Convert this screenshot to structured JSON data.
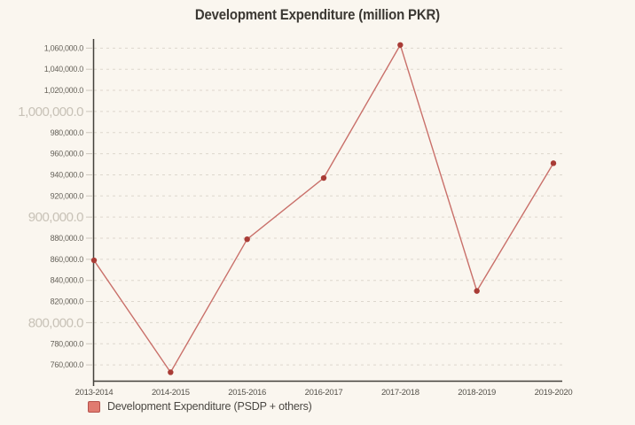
{
  "chart_data": {
    "type": "line",
    "title": "Development Expenditure (million PKR)",
    "categories": [
      "2013-2014",
      "2014-2015",
      "2015-2016",
      "2016-2017",
      "2017-2018",
      "2018-2019",
      "2019-2020"
    ],
    "series": [
      {
        "name": "Development Expenditure (PSDP + others)",
        "values": [
          859000,
          753000,
          879000,
          937000,
          1063000,
          830000,
          951000
        ]
      }
    ],
    "xlabel": "",
    "ylabel": "",
    "ylim": [
      745000,
      1067000
    ],
    "grid": "horizontal-dashed",
    "legend_position": "bottom-left",
    "y_ticks": [
      {
        "value": 760000,
        "label": "760,000.0",
        "major": false
      },
      {
        "value": 780000,
        "label": "780,000.0",
        "major": false
      },
      {
        "value": 800000,
        "label": "800,000.0",
        "major": true
      },
      {
        "value": 820000,
        "label": "820,000.0",
        "major": false
      },
      {
        "value": 840000,
        "label": "840,000.0",
        "major": false
      },
      {
        "value": 860000,
        "label": "860,000.0",
        "major": false
      },
      {
        "value": 880000,
        "label": "880,000.0",
        "major": false
      },
      {
        "value": 900000,
        "label": "900,000.0",
        "major": true
      },
      {
        "value": 920000,
        "label": "920,000.0",
        "major": false
      },
      {
        "value": 940000,
        "label": "940,000.0",
        "major": false
      },
      {
        "value": 960000,
        "label": "960,000.0",
        "major": false
      },
      {
        "value": 980000,
        "label": "980,000.0",
        "major": false
      },
      {
        "value": 1000000,
        "label": "1,000,000.0",
        "major": true
      },
      {
        "value": 1020000,
        "label": "1,020,000.0",
        "major": false
      },
      {
        "value": 1040000,
        "label": "1,040,000.0",
        "major": false
      },
      {
        "value": 1060000,
        "label": "1,060,000.0",
        "major": false
      }
    ],
    "colors": {
      "background": "#faf6ef",
      "title": "#3b3833",
      "line": "#c9706a",
      "point": "#a93c36",
      "grid": "#ddd7cd",
      "tick_mark": "#ccc6bc",
      "axis": "#44413b",
      "tick_label_minor": "#67635b",
      "tick_label_major": "#c8c2b7",
      "x_label": "#55524b",
      "legend_swatch_fill": "#e07b70",
      "legend_swatch_border": "#b5514b",
      "legend_text": "#4b4843"
    }
  }
}
